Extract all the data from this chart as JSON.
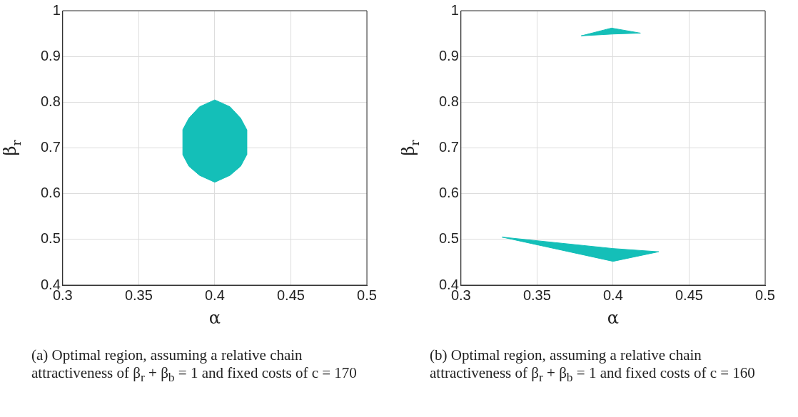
{
  "chart_data": [
    {
      "type": "area",
      "xlabel": "α",
      "ylabel": "β$_{r}$",
      "xlim": [
        0.3,
        0.5
      ],
      "xticks": [
        0.3,
        0.35,
        0.4,
        0.45,
        0.5
      ],
      "ylim": [
        0.4,
        1
      ],
      "yticks": [
        0.4,
        0.5,
        0.6,
        0.7,
        0.8,
        0.9,
        1
      ],
      "grid": true,
      "series": [
        {
          "color": "#14bfb8",
          "x": [
            0.4,
            0.41,
            0.417,
            0.421,
            0.421,
            0.417,
            0.41,
            0.4,
            0.39,
            0.383,
            0.379,
            0.379,
            0.383,
            0.39,
            0.4
          ],
          "values": [
            0.805,
            0.79,
            0.765,
            0.74,
            0.685,
            0.66,
            0.64,
            0.625,
            0.64,
            0.66,
            0.685,
            0.74,
            0.765,
            0.79,
            0.805
          ]
        }
      ],
      "annotations": [
        "(a) Optimal region, assuming a relative chain attractiveness of β$_{r}$ + β$_{b}$ = 1 and fixed costs of c = 170"
      ]
    },
    {
      "type": "area",
      "xlabel": "α",
      "ylabel": "β$_{r}$",
      "xlim": [
        0.3,
        0.5
      ],
      "xticks": [
        0.3,
        0.35,
        0.4,
        0.45,
        0.5
      ],
      "ylim": [
        0.4,
        1
      ],
      "yticks": [
        0.4,
        0.5,
        0.6,
        0.7,
        0.8,
        0.9,
        1
      ],
      "grid": true,
      "series": [
        {
          "color": "#14bfb8",
          "x": [
            0.379,
            0.399,
            0.418,
            0.4,
            0.379
          ],
          "values": [
            0.945,
            0.962,
            0.951,
            0.949,
            0.945
          ]
        },
        {
          "color": "#14bfb8",
          "x": [
            0.327,
            0.4,
            0.43,
            0.4,
            0.327
          ],
          "values": [
            0.505,
            0.48,
            0.473,
            0.452,
            0.505
          ]
        }
      ],
      "annotations": [
        "(b) Optimal region, assuming a relative chain attractiveness of β$_{r}$ + β$_{b}$ = 1 and fixed costs of c = 160"
      ]
    }
  ]
}
